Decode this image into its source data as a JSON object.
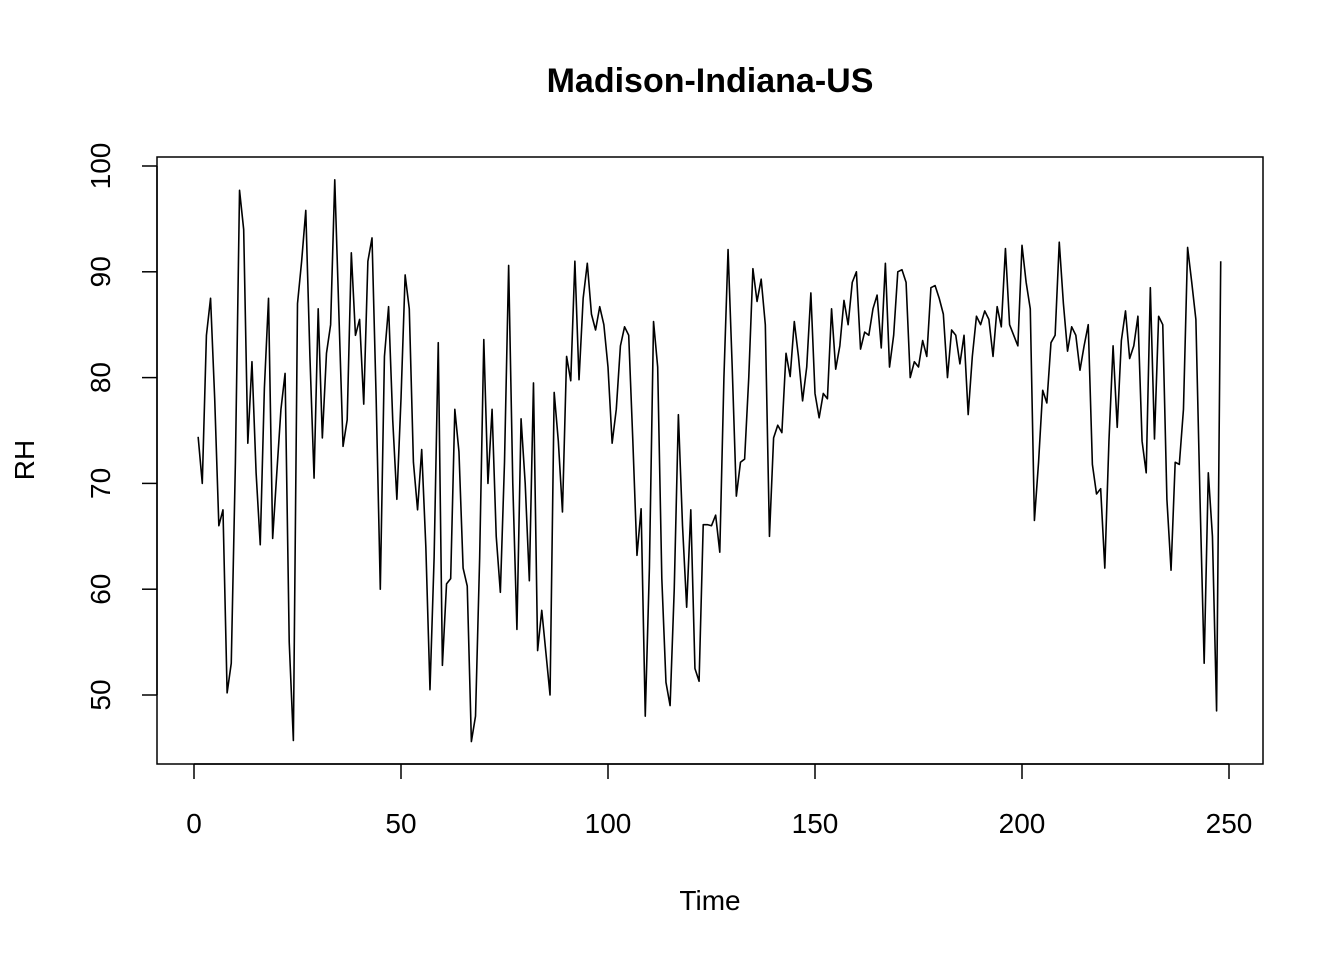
{
  "chart_data": {
    "type": "line",
    "title": "Madison-Indiana-US",
    "xlabel": "Time",
    "ylabel": "RH",
    "xlim": [
      1,
      248
    ],
    "ylim": [
      45,
      99
    ],
    "x_ticks": [
      0,
      50,
      100,
      150,
      200,
      250
    ],
    "y_ticks": [
      50,
      60,
      70,
      80,
      90,
      100
    ],
    "grid": false,
    "legend": "none",
    "line_color": "#000000",
    "series": [
      {
        "values": [
          74.4,
          70.0,
          84.0,
          87.5,
          78.0,
          66.0,
          67.5,
          50.2,
          53.0,
          72.0,
          97.7,
          94.0,
          73.8,
          81.5,
          71.0,
          64.2,
          79.0,
          87.5,
          64.8,
          71.0,
          77.0,
          80.4,
          55.0,
          45.7,
          87.0,
          91.0,
          95.8,
          82.0,
          70.5,
          86.5,
          74.3,
          82.3,
          85.0,
          98.7,
          86.0,
          73.5,
          76.0,
          91.8,
          84.0,
          85.5,
          77.5,
          91.0,
          93.2,
          78.0,
          60.0,
          82.0,
          86.7,
          76.0,
          68.5,
          78.0,
          89.7,
          86.5,
          72.0,
          67.5,
          73.2,
          64.0,
          50.5,
          63.0,
          83.3,
          52.8,
          60.5,
          61.0,
          77.0,
          73.0,
          62.0,
          60.3,
          45.6,
          48.0,
          63.0,
          83.6,
          70.0,
          77.0,
          65.0,
          59.7,
          72.0,
          90.6,
          70.0,
          56.2,
          76.1,
          70.0,
          60.8,
          79.5,
          54.2,
          58.0,
          54.0,
          50.0,
          78.6,
          74.0,
          67.3,
          82.0,
          79.7,
          91.0,
          79.8,
          87.5,
          90.8,
          86.0,
          84.5,
          86.7,
          85.0,
          81.0,
          73.8,
          77.0,
          83.0,
          84.8,
          84.0,
          74.0,
          63.2,
          67.6,
          48.0,
          62.0,
          85.3,
          81.0,
          61.0,
          51.2,
          49.0,
          60.0,
          76.5,
          66.0,
          58.3,
          67.5,
          52.5,
          51.3,
          66.1,
          66.1,
          66.0,
          67.0,
          63.5,
          80.0,
          92.1,
          81.0,
          68.8,
          72.0,
          72.3,
          80.0,
          90.3,
          87.2,
          89.3,
          85.0,
          65.0,
          74.3,
          75.5,
          74.8,
          82.3,
          80.1,
          85.3,
          82.0,
          77.8,
          81.0,
          88.0,
          78.5,
          76.2,
          78.5,
          78.0,
          86.5,
          80.8,
          83.0,
          87.3,
          85.0,
          89.0,
          90.0,
          82.7,
          84.3,
          84.0,
          86.5,
          87.8,
          82.8,
          90.8,
          81.0,
          84.0,
          90.0,
          90.2,
          89.0,
          80.0,
          81.5,
          81.0,
          83.5,
          82.0,
          88.5,
          88.7,
          87.5,
          86.0,
          80.0,
          84.5,
          84.0,
          81.3,
          84.0,
          76.5,
          82.0,
          85.8,
          85.0,
          86.3,
          85.5,
          82.0,
          86.7,
          84.8,
          92.2,
          85.0,
          84.0,
          83.0,
          92.5,
          89.0,
          86.5,
          66.5,
          72.0,
          78.8,
          77.6,
          83.3,
          84.0,
          92.8,
          87.0,
          82.5,
          84.8,
          84.0,
          80.7,
          83.0,
          85.0,
          71.8,
          69.0,
          69.5,
          62.0,
          74.0,
          83.0,
          75.3,
          83.5,
          86.3,
          81.8,
          83.0,
          85.8,
          74.0,
          71.0,
          88.5,
          74.2,
          85.8,
          85.0,
          68.5,
          61.8,
          72.0,
          71.8,
          77.0,
          92.3,
          89.0,
          85.5,
          68.5,
          53.0,
          71.0,
          65.0,
          48.5,
          91.0
        ]
      }
    ]
  }
}
